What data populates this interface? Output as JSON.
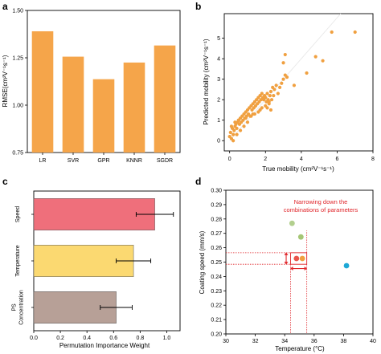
{
  "panels": {
    "a": "a",
    "b": "b",
    "c": "c",
    "d": "d"
  },
  "chart_data": [
    {
      "panel": "a",
      "type": "bar",
      "categories": [
        "LR",
        "SVR",
        "GPR",
        "KNNR",
        "SGDR"
      ],
      "values": [
        1.39,
        1.256,
        1.137,
        1.225,
        1.315
      ],
      "ylabel": "RMSE(cm²V⁻¹s⁻¹)",
      "ylim": [
        0.75,
        1.5
      ],
      "yticks": [
        "0.75",
        "1.00",
        "1.25",
        "1.50"
      ],
      "bar_color": "#f5a54a",
      "grid": false
    },
    {
      "panel": "b",
      "type": "scatter",
      "xlabel": "True mobility (cm²V⁻¹s⁻¹)",
      "ylabel": "Predicted mobility (cm²V⁻¹s⁻¹)",
      "xlim": [
        -0.3,
        8
      ],
      "ylim": [
        -0.5,
        6.2
      ],
      "xticks": [
        "0",
        "2",
        "4",
        "6",
        "8"
      ],
      "yticks": [
        "0",
        "1",
        "2",
        "3",
        "4",
        "5"
      ],
      "point_color": "#f0a040",
      "reference_line": "y = x",
      "x": [
        0.0,
        0.05,
        0.1,
        0.15,
        0.2,
        0.25,
        0.3,
        0.35,
        0.4,
        0.45,
        0.5,
        0.55,
        0.6,
        0.65,
        0.7,
        0.75,
        0.8,
        0.85,
        0.9,
        0.95,
        1.0,
        1.05,
        1.1,
        1.15,
        1.2,
        1.25,
        1.3,
        1.35,
        1.4,
        1.45,
        1.5,
        1.55,
        1.6,
        1.65,
        1.7,
        1.75,
        1.8,
        1.85,
        1.9,
        1.95,
        2.0,
        2.05,
        2.1,
        2.15,
        2.2,
        2.25,
        2.3,
        2.35,
        2.4,
        2.45,
        2.5,
        2.6,
        2.7,
        2.8,
        2.9,
        3.0,
        3.1,
        3.2,
        0.2,
        0.4,
        0.6,
        0.8,
        1.0,
        1.2,
        1.4,
        1.6,
        1.8,
        2.0,
        2.2,
        0.1,
        0.3,
        0.5,
        0.9,
        1.3,
        1.7,
        2.1,
        2.3,
        3.0,
        3.1,
        3.6,
        4.3,
        4.8,
        5.2,
        5.7,
        7.0
      ],
      "y": [
        0.2,
        0.4,
        0.1,
        0.6,
        0.3,
        0.5,
        0.7,
        0.8,
        0.6,
        0.9,
        1.0,
        0.8,
        1.1,
        0.9,
        1.2,
        1.0,
        1.3,
        1.1,
        1.4,
        1.2,
        1.5,
        1.3,
        1.6,
        1.2,
        1.7,
        1.5,
        1.8,
        1.6,
        1.9,
        1.7,
        2.0,
        1.8,
        2.1,
        1.9,
        2.2,
        2.0,
        2.3,
        2.1,
        2.0,
        2.2,
        2.1,
        1.9,
        2.3,
        2.0,
        1.8,
        2.2,
        2.4,
        2.0,
        2.6,
        2.2,
        2.5,
        2.7,
        2.3,
        2.6,
        2.8,
        3.0,
        3.2,
        3.1,
        0.0,
        0.3,
        0.5,
        0.7,
        0.9,
        1.2,
        1.3,
        1.4,
        1.6,
        1.7,
        1.9,
        0.7,
        0.9,
        1.0,
        1.1,
        1.3,
        1.5,
        1.6,
        1.5,
        3.8,
        4.2,
        2.7,
        3.3,
        4.1,
        3.9,
        5.3,
        5.3
      ]
    },
    {
      "panel": "c",
      "type": "bar",
      "orientation": "horizontal",
      "xlabel": "Permutation Importance Weight",
      "categories": [
        "Speed",
        "Temperature",
        "PS Concentration"
      ],
      "category_lines": [
        [
          "Speed"
        ],
        [
          "Temperature"
        ],
        [
          "PS",
          "Concentration"
        ]
      ],
      "values": [
        0.91,
        0.75,
        0.62
      ],
      "errors": [
        0.14,
        0.13,
        0.12
      ],
      "colors": [
        "#ef6f7b",
        "#fbd971",
        "#b7a097"
      ],
      "xlim": [
        0,
        1.1
      ],
      "xticks": [
        "0.0",
        "0.2",
        "0.4",
        "0.6",
        "0.8",
        "1.0"
      ]
    },
    {
      "panel": "d",
      "type": "scatter",
      "xlabel": "Temperature (°C)",
      "ylabel": "Coating speed (mm/s)",
      "xlim": [
        30,
        40
      ],
      "ylim": [
        0.2,
        0.3
      ],
      "xticks": [
        "30",
        "32",
        "34",
        "36",
        "38",
        "40"
      ],
      "yticks": [
        "0.20",
        "0.21",
        "0.22",
        "0.23",
        "0.24",
        "0.25",
        "0.26",
        "0.27",
        "0.28",
        "0.29",
        "0.30"
      ],
      "annotation": [
        "Narrowing down the",
        "combinations of parameters"
      ],
      "points": [
        {
          "x": 34.5,
          "y": 0.277,
          "color": "#b2cf8e"
        },
        {
          "x": 35.1,
          "y": 0.2675,
          "color": "#a5c675"
        },
        {
          "x": 34.8,
          "y": 0.2525,
          "color": "#e9544b"
        },
        {
          "x": 35.2,
          "y": 0.2525,
          "color": "#f0a040"
        },
        {
          "x": 38.2,
          "y": 0.2475,
          "color": "#1ea8d6"
        }
      ],
      "highlight_color": "#e0262b"
    }
  ]
}
